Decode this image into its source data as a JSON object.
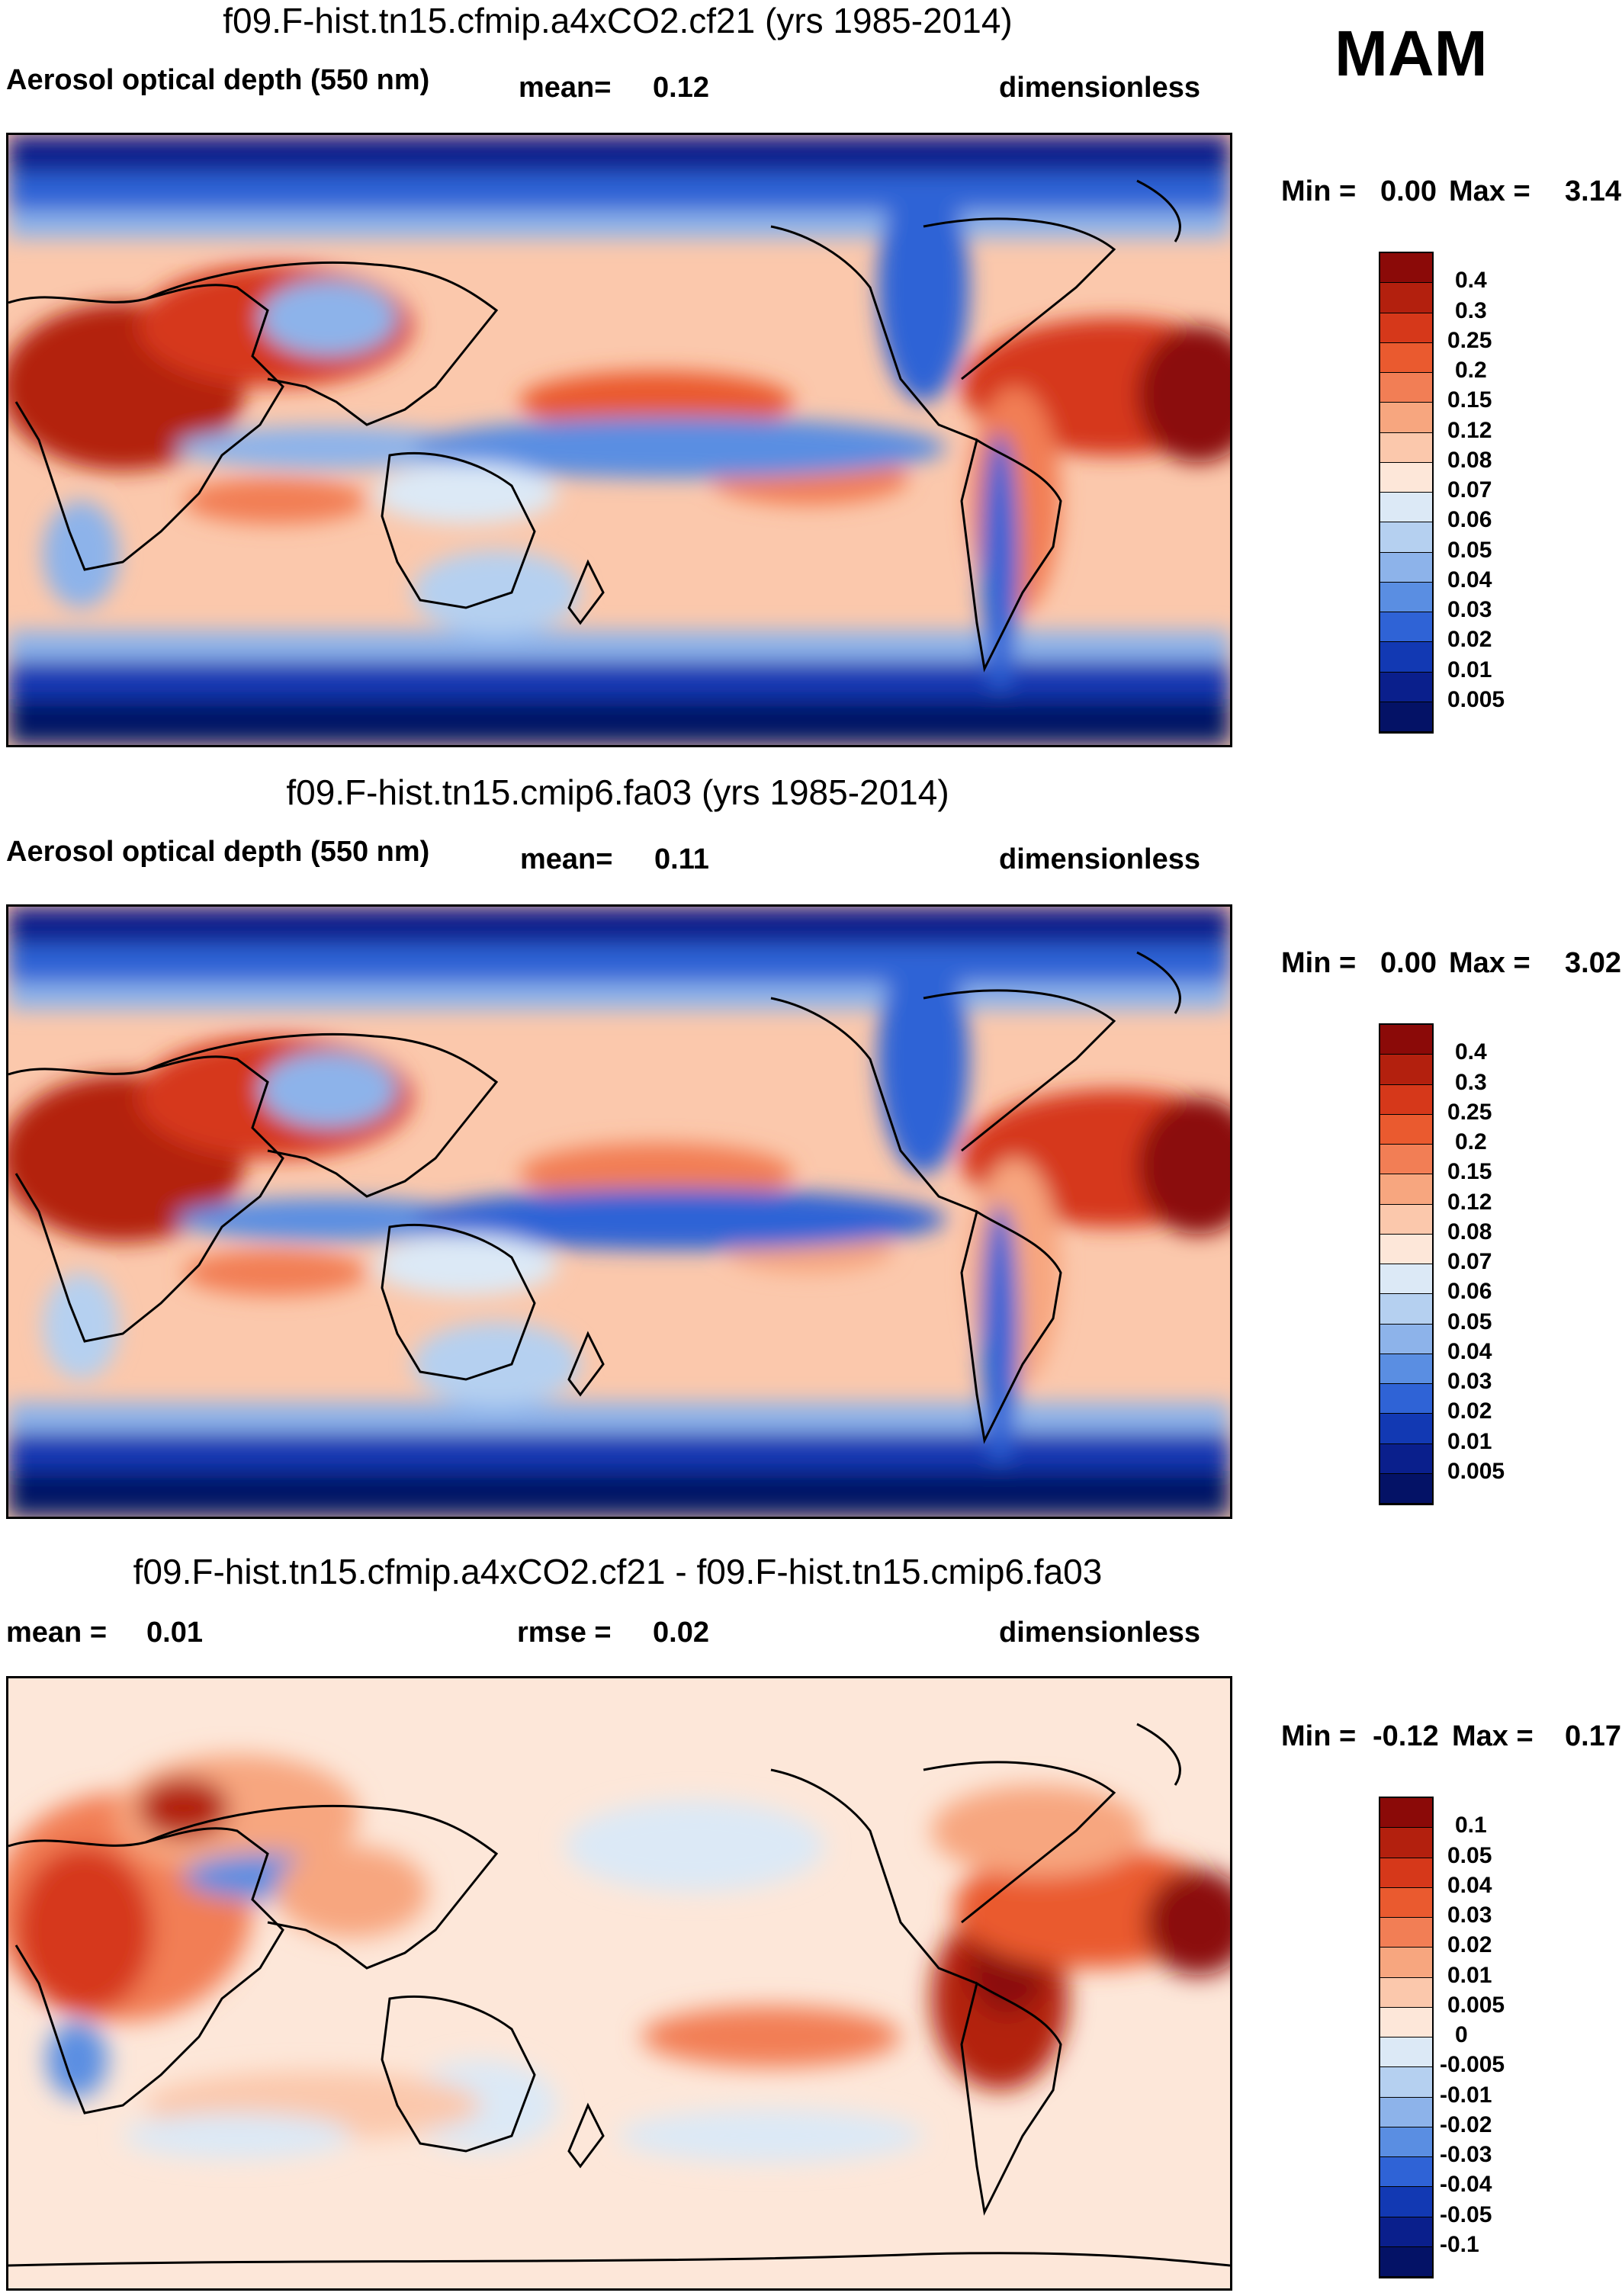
{
  "chart_data": [
    {
      "type": "heatmap",
      "title": "f09.F-hist.tn15.cfmip.a4xCO2.cf21 (yrs 1985-2014)",
      "variable": "Aerosol optical depth (550 nm)",
      "mean_label": "mean=",
      "mean": "0.12",
      "units": "dimensionless",
      "min_label": "Min =",
      "min": "0.00",
      "max_label": "Max =",
      "max": "3.14",
      "colorbar_levels": [
        "0.4",
        "0.3",
        "0.25",
        "0.2",
        "0.15",
        "0.12",
        "0.08",
        "0.07",
        "0.06",
        "0.05",
        "0.04",
        "0.03",
        "0.02",
        "0.01",
        "0.005"
      ],
      "colorbar_colors": [
        "#8b0a08",
        "#b3200e",
        "#d6381a",
        "#ea5a2f",
        "#f27e55",
        "#f7a67f",
        "#fbc8ac",
        "#fde7d9",
        "#dce9f6",
        "#b5d0f0",
        "#8db3ea",
        "#5a8ee2",
        "#2f63d6",
        "#1239b3",
        "#0a1f8c",
        "#041266"
      ]
    },
    {
      "type": "heatmap",
      "title": "f09.F-hist.tn15.cmip6.fa03 (yrs 1985-2014)",
      "variable": "Aerosol optical depth (550 nm)",
      "mean_label": "mean=",
      "mean": "0.11",
      "units": "dimensionless",
      "min_label": "Min =",
      "min": "0.00",
      "max_label": "Max =",
      "max": "3.02",
      "colorbar_levels": [
        "0.4",
        "0.3",
        "0.25",
        "0.2",
        "0.15",
        "0.12",
        "0.08",
        "0.07",
        "0.06",
        "0.05",
        "0.04",
        "0.03",
        "0.02",
        "0.01",
        "0.005"
      ],
      "colorbar_colors": [
        "#8b0a08",
        "#b3200e",
        "#d6381a",
        "#ea5a2f",
        "#f27e55",
        "#f7a67f",
        "#fbc8ac",
        "#fde7d9",
        "#dce9f6",
        "#b5d0f0",
        "#8db3ea",
        "#5a8ee2",
        "#2f63d6",
        "#1239b3",
        "#0a1f8c",
        "#041266"
      ]
    },
    {
      "type": "heatmap",
      "title": "f09.F-hist.tn15.cfmip.a4xCO2.cf21 - f09.F-hist.tn15.cmip6.fa03",
      "mean_label": "mean =",
      "mean": "0.01",
      "rmse_label": "rmse =",
      "rmse": "0.02",
      "units": "dimensionless",
      "min_label": "Min =",
      "min": "-0.12",
      "max_label": "Max =",
      "max": "0.17",
      "colorbar_levels": [
        "0.1",
        "0.05",
        "0.04",
        "0.03",
        "0.02",
        "0.01",
        "0.005",
        "0",
        "-0.005",
        "-0.01",
        "-0.02",
        "-0.03",
        "-0.04",
        "-0.05",
        "-0.1"
      ],
      "colorbar_colors": [
        "#8b0a08",
        "#b3200e",
        "#d6381a",
        "#ea5a2f",
        "#f27e55",
        "#f7a67f",
        "#fbc8ac",
        "#fde7d9",
        "#dce9f6",
        "#b5d0f0",
        "#8db3ea",
        "#5a8ee2",
        "#2f63d6",
        "#1239b3",
        "#0a1f8c",
        "#041266"
      ]
    }
  ],
  "season": "MAM"
}
